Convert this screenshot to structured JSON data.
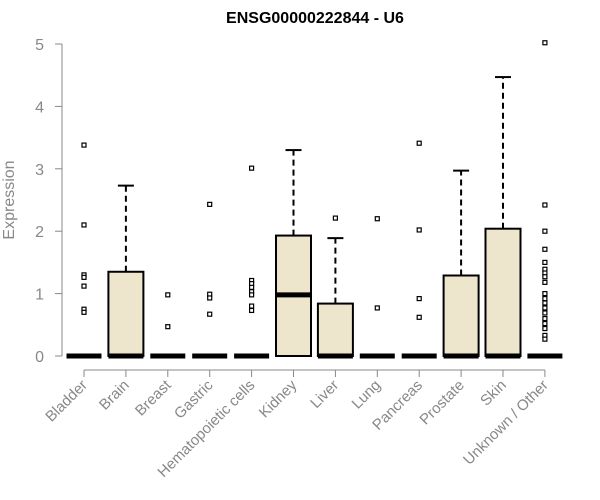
{
  "chart_data": {
    "type": "boxplot",
    "title": "ENSG00000222844 - U6",
    "ylabel": "Expression",
    "xlabel": "",
    "ylim": [
      0,
      5
    ],
    "yticks": [
      0,
      1,
      2,
      3,
      4,
      5
    ],
    "grid": false,
    "box_fill": "#ede6cd",
    "box_stroke": "#000000",
    "axis_color": "#888888",
    "categories": [
      "Bladder",
      "Brain",
      "Breast",
      "Gastric",
      "Hematopoietic cells",
      "Kidney",
      "Liver",
      "Lung",
      "Pancreas",
      "Prostate",
      "Skin",
      "Unknown / Other"
    ],
    "boxes": [
      {
        "category": "Bladder",
        "q1": 0,
        "median": 0,
        "q3": 0,
        "whisker_low": 0,
        "whisker_high": 0,
        "outliers": [
          3.38,
          2.1,
          1.3,
          1.26,
          1.12,
          0.75,
          0.7
        ]
      },
      {
        "category": "Brain",
        "q1": 0,
        "median": 0,
        "q3": 1.35,
        "whisker_low": 0,
        "whisker_high": 2.73,
        "outliers": []
      },
      {
        "category": "Breast",
        "q1": 0,
        "median": 0,
        "q3": 0,
        "whisker_low": 0,
        "whisker_high": 0,
        "outliers": [
          0.98,
          0.47
        ]
      },
      {
        "category": "Gastric",
        "q1": 0,
        "median": 0,
        "q3": 0,
        "whisker_low": 0,
        "whisker_high": 0,
        "outliers": [
          2.43,
          0.99,
          0.93,
          0.67
        ]
      },
      {
        "category": "Hematopoietic cells",
        "q1": 0,
        "median": 0,
        "q3": 0,
        "whisker_low": 0,
        "whisker_high": 0,
        "outliers": [
          3.01,
          1.21,
          1.16,
          1.1,
          1.03,
          0.98,
          0.8,
          0.73
        ]
      },
      {
        "category": "Kidney",
        "q1": 0,
        "median": 0.98,
        "q3": 1.93,
        "whisker_low": 0,
        "whisker_high": 3.3,
        "outliers": []
      },
      {
        "category": "Liver",
        "q1": 0,
        "median": 0,
        "q3": 0.84,
        "whisker_low": 0,
        "whisker_high": 1.89,
        "outliers": [
          2.21
        ]
      },
      {
        "category": "Lung",
        "q1": 0,
        "median": 0,
        "q3": 0,
        "whisker_low": 0,
        "whisker_high": 0,
        "outliers": [
          2.2,
          0.77
        ]
      },
      {
        "category": "Pancreas",
        "q1": 0,
        "median": 0,
        "q3": 0,
        "whisker_low": 0,
        "whisker_high": 0,
        "outliers": [
          3.41,
          2.02,
          0.92,
          0.62
        ]
      },
      {
        "category": "Prostate",
        "q1": 0,
        "median": 0,
        "q3": 1.29,
        "whisker_low": 0,
        "whisker_high": 2.97,
        "outliers": []
      },
      {
        "category": "Skin",
        "q1": 0,
        "median": 0,
        "q3": 2.04,
        "whisker_low": 0,
        "whisker_high": 4.47,
        "outliers": []
      },
      {
        "category": "Unknown / Other",
        "q1": 0,
        "median": 0,
        "q3": 0,
        "whisker_low": 0,
        "whisker_high": 0,
        "outliers": [
          5.02,
          2.42,
          2.0,
          1.71,
          1.5,
          1.39,
          1.33,
          1.27,
          1.18,
          1.0,
          0.92,
          0.85,
          0.77,
          0.69,
          0.6,
          0.52,
          0.44,
          0.33,
          0.27
        ]
      }
    ]
  }
}
